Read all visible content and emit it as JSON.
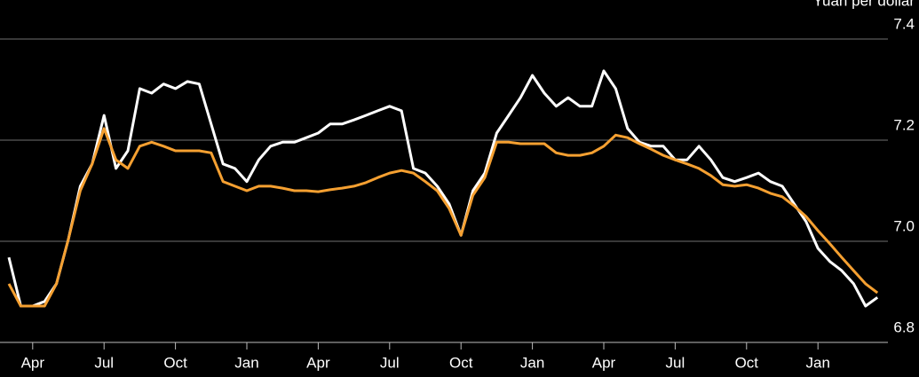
{
  "chart_data": {
    "type": "line",
    "y_label": "Yuan per dollar",
    "categories": [
      null,
      null,
      "Apr",
      null,
      null,
      null,
      null,
      null,
      "Jul",
      null,
      null,
      null,
      null,
      null,
      "Oct",
      null,
      null,
      null,
      null,
      null,
      "Jan",
      null,
      null,
      null,
      null,
      null,
      "Apr",
      null,
      null,
      null,
      null,
      null,
      "Jul",
      null,
      null,
      null,
      null,
      null,
      "Oct",
      null,
      null,
      null,
      null,
      null,
      "Jan",
      null,
      null,
      null,
      null,
      null,
      "Apr",
      null,
      null,
      null,
      null,
      null,
      "Jul",
      null,
      null,
      null,
      null,
      null,
      "Oct",
      null,
      null,
      null,
      null,
      null,
      "Jan",
      null,
      null,
      null,
      null,
      null
    ],
    "series": [
      {
        "color": "#ffffff",
        "values": [
          6.968,
          6.872,
          6.872,
          6.881,
          6.916,
          7.004,
          7.109,
          7.153,
          7.249,
          7.144,
          7.179,
          7.302,
          7.293,
          7.311,
          7.302,
          7.316,
          7.311,
          7.232,
          7.153,
          7.144,
          7.118,
          7.161,
          7.188,
          7.196,
          7.196,
          7.205,
          7.214,
          7.232,
          7.232,
          7.24,
          7.249,
          7.258,
          7.267,
          7.258,
          7.144,
          7.135,
          7.109,
          7.074,
          7.012,
          7.1,
          7.135,
          7.214,
          7.249,
          7.284,
          7.328,
          7.293,
          7.267,
          7.284,
          7.267,
          7.267,
          7.337,
          7.302,
          7.223,
          7.196,
          7.188,
          7.188,
          7.161,
          7.161,
          7.188,
          7.161,
          7.126,
          7.118,
          7.126,
          7.135,
          7.118,
          7.109,
          7.074,
          7.039,
          6.986,
          6.96,
          6.942,
          6.916,
          6.872,
          6.889
        ]
      },
      {
        "color": "#f5a031",
        "values": [
          6.916,
          6.872,
          6.872,
          6.872,
          6.916,
          7.004,
          7.1,
          7.153,
          7.223,
          7.161,
          7.144,
          7.188,
          7.196,
          7.188,
          7.179,
          7.179,
          7.179,
          7.175,
          7.118,
          7.109,
          7.1,
          7.109,
          7.109,
          7.105,
          7.1,
          7.1,
          7.098,
          7.102,
          7.105,
          7.109,
          7.116,
          7.126,
          7.135,
          7.14,
          7.135,
          7.118,
          7.1,
          7.065,
          7.012,
          7.091,
          7.126,
          7.196,
          7.196,
          7.193,
          7.193,
          7.193,
          7.175,
          7.17,
          7.17,
          7.175,
          7.188,
          7.21,
          7.205,
          7.193,
          7.182,
          7.17,
          7.161,
          7.153,
          7.144,
          7.13,
          7.112,
          7.109,
          7.112,
          7.105,
          7.095,
          7.088,
          7.07,
          7.049,
          7.021,
          6.995,
          6.968,
          6.942,
          6.916,
          6.898
        ]
      }
    ],
    "ylim": [
      6.8,
      7.4
    ],
    "yticks": [
      6.8,
      {
        "value": 7,
        "label": "7.0"
      },
      7.2,
      7.4
    ],
    "grid": true
  }
}
